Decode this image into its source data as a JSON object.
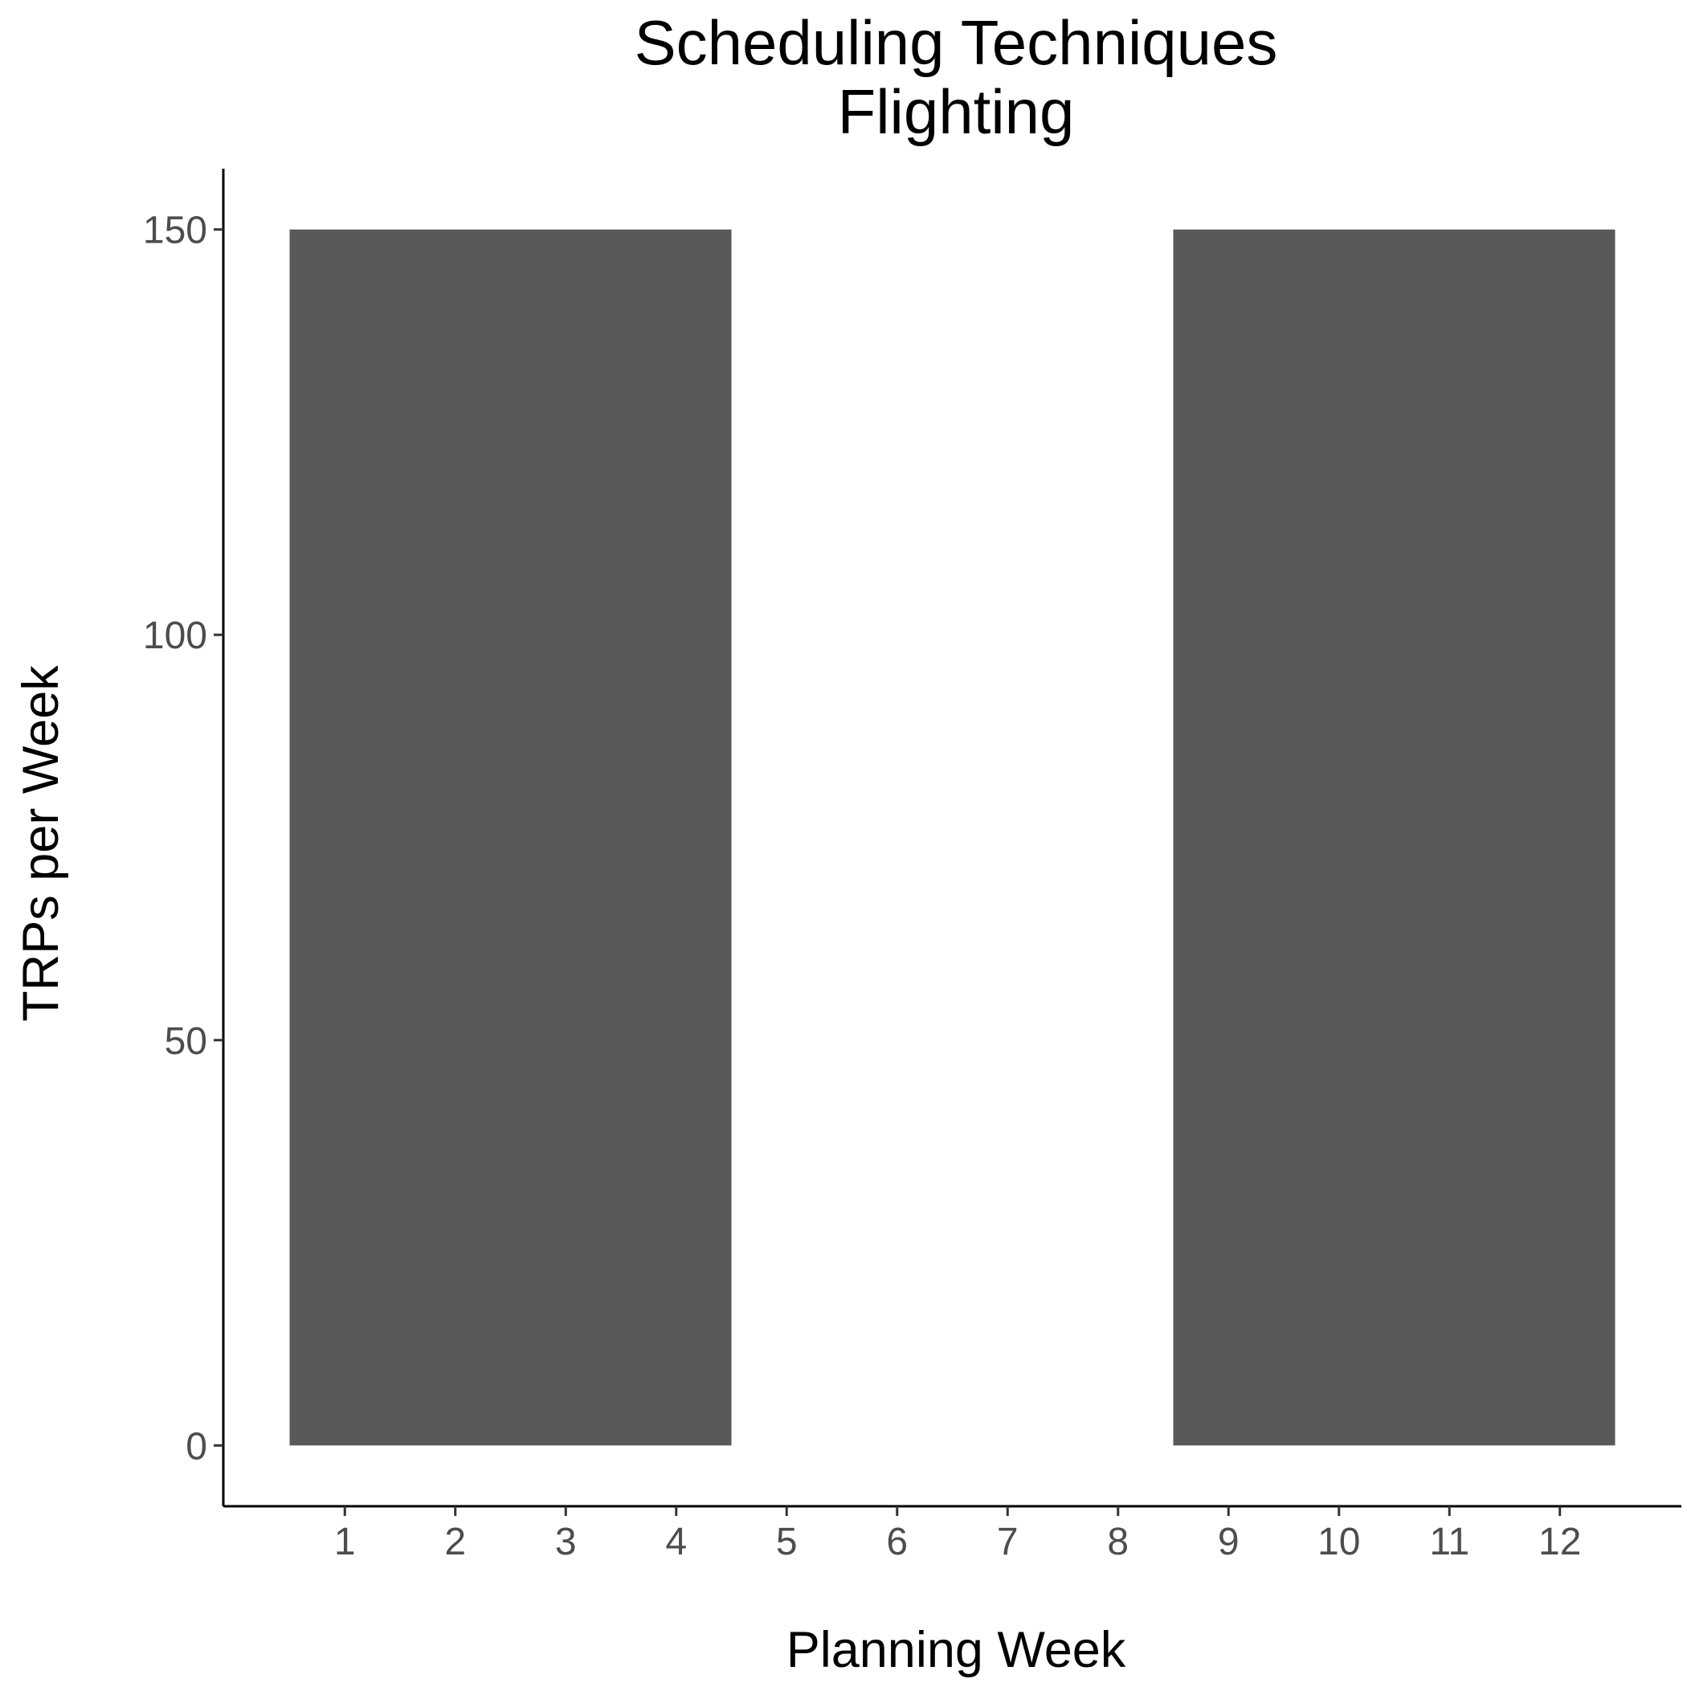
{
  "chart_data": {
    "type": "bar",
    "title": "Scheduling Techniques",
    "subtitle": "Flighting",
    "xlabel": "Planning Week",
    "ylabel": "TRPs per Week",
    "categories": [
      "1",
      "2",
      "3",
      "4",
      "5",
      "6",
      "7",
      "8",
      "9",
      "10",
      "11",
      "12"
    ],
    "values": [
      150,
      150,
      150,
      150,
      0,
      0,
      0,
      0,
      150,
      150,
      150,
      150
    ],
    "ylim": [
      -7.5,
      157.5
    ],
    "xlim": [
      -0.1,
      13.1
    ],
    "y_ticks": [
      0,
      50,
      100,
      150
    ],
    "grid": false,
    "bar_color": "#595959",
    "legend": "none"
  }
}
